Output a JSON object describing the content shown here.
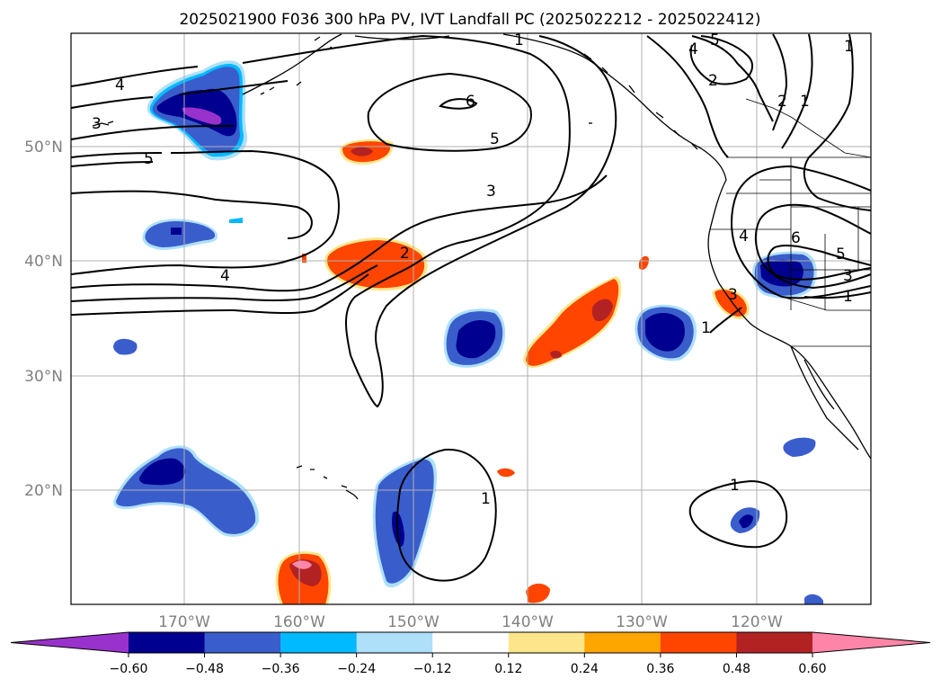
{
  "title": "2025021900 F036 300 hPa PV, IVT Landfall PC (2025022212 - 2025022412)",
  "lat_labels": [
    "50°N",
    "40°N",
    "30°N",
    "20°N"
  ],
  "lon_labels": [
    "170°W",
    "160°W",
    "150°W",
    "140°W",
    "130°W",
    "120°W"
  ],
  "contour_labels": [
    "1",
    "2",
    "3",
    "4",
    "5",
    "6",
    "3",
    "5",
    "4",
    "5",
    "4",
    "2",
    "1",
    "1",
    "2",
    "3",
    "1",
    "4",
    "5",
    "6",
    "3",
    "1",
    "1",
    "1"
  ],
  "colorbar": {
    "tick_labels": [
      "−0.60",
      "−0.48",
      "−0.36",
      "−0.24",
      "−0.12",
      "0.12",
      "0.24",
      "0.36",
      "0.48",
      "0.60"
    ],
    "colors": [
      "#9932cc",
      "#000090",
      "#3a5dcc",
      "#00baff",
      "#aee0fa",
      "#ffffff",
      "#fde68a",
      "#ffa500",
      "#ff4500",
      "#b22222",
      "#ff85a8"
    ]
  },
  "colors": {
    "neg_strong": "#000090",
    "neg_mid": "#3a5dcc",
    "neg_light": "#00baff",
    "neg_pale": "#aee0fa",
    "pos_pale": "#fde68a",
    "pos_light": "#ffa500",
    "pos_mid": "#ff4500",
    "pos_strong": "#b22222",
    "pos_extreme": "#ff85a8",
    "purple": "#9932cc"
  }
}
